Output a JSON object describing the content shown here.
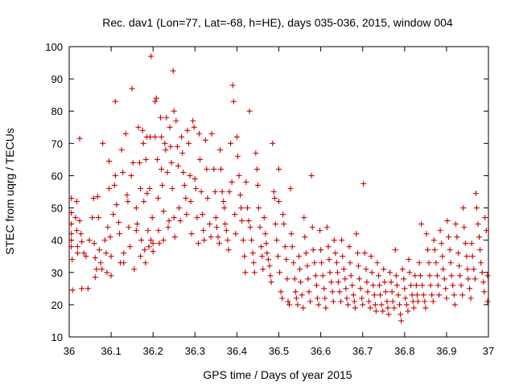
{
  "chart_data": {
    "type": "scatter",
    "title": "Rec. dav1 (Lon=77, Lat=-68, h=HE), days 035-036, 2015, window 004",
    "xlabel": "GPS time / Days of year 2015",
    "ylabel": "STEC from uqrg / TECUs",
    "xlim": [
      36,
      37
    ],
    "ylim": [
      10,
      100
    ],
    "xticks": [
      36,
      36.1,
      36.2,
      36.3,
      36.4,
      36.5,
      36.6,
      36.7,
      36.8,
      36.9,
      37
    ],
    "xtick_labels": [
      "36",
      "36.1",
      "36.2",
      "36.3",
      "36.4",
      "36.5",
      "36.6",
      "36.7",
      "36.8",
      "36.9",
      "37"
    ],
    "yticks": [
      10,
      20,
      30,
      40,
      50,
      60,
      70,
      80,
      90,
      100
    ],
    "ytick_labels": [
      "10",
      "20",
      "30",
      "40",
      "50",
      "60",
      "70",
      "80",
      "90",
      "100"
    ],
    "grid": false,
    "marker": "plus",
    "marker_color": "#cc0000",
    "points": [
      [
        36.005,
        53
      ],
      [
        36.005,
        48.5
      ],
      [
        36.005,
        45
      ],
      [
        36.005,
        42
      ],
      [
        36.005,
        40
      ],
      [
        36.005,
        38
      ],
      [
        36.007,
        34
      ],
      [
        36.008,
        24.5
      ],
      [
        36.015,
        47
      ],
      [
        36.018,
        52
      ],
      [
        36.018,
        43
      ],
      [
        36.02,
        38
      ],
      [
        36.02,
        36
      ],
      [
        36.025,
        71.5
      ],
      [
        36.025,
        46
      ],
      [
        36.028,
        42
      ],
      [
        36.03,
        39.5
      ],
      [
        36.03,
        25
      ],
      [
        36.035,
        36
      ],
      [
        36.04,
        35
      ],
      [
        36.045,
        25
      ],
      [
        36.048,
        40
      ],
      [
        36.055,
        47
      ],
      [
        36.058,
        53
      ],
      [
        36.06,
        39
      ],
      [
        36.062,
        34.5
      ],
      [
        36.062,
        28.5
      ],
      [
        36.065,
        31
      ],
      [
        36.068,
        53.5
      ],
      [
        36.07,
        47
      ],
      [
        36.072,
        37
      ],
      [
        36.075,
        33
      ],
      [
        36.078,
        31
      ],
      [
        36.08,
        70
      ],
      [
        36.085,
        40
      ],
      [
        36.088,
        36
      ],
      [
        36.09,
        30
      ],
      [
        36.092,
        44
      ],
      [
        36.095,
        64.5
      ],
      [
        36.095,
        56
      ],
      [
        36.098,
        41
      ],
      [
        36.1,
        35
      ],
      [
        36.1,
        29
      ],
      [
        36.105,
        48
      ],
      [
        36.108,
        57
      ],
      [
        36.11,
        83
      ],
      [
        36.11,
        60
      ],
      [
        36.113,
        51
      ],
      [
        36.118,
        45.5
      ],
      [
        36.12,
        42
      ],
      [
        36.122,
        33
      ],
      [
        36.125,
        68
      ],
      [
        36.128,
        61
      ],
      [
        36.13,
        36
      ],
      [
        36.13,
        33
      ],
      [
        36.135,
        73
      ],
      [
        36.138,
        54
      ],
      [
        36.14,
        52
      ],
      [
        36.142,
        44
      ],
      [
        36.145,
        38
      ],
      [
        36.148,
        60
      ],
      [
        36.15,
        87
      ],
      [
        36.152,
        64
      ],
      [
        36.155,
        31
      ],
      [
        36.16,
        50
      ],
      [
        36.16,
        43
      ],
      [
        36.162,
        45
      ],
      [
        36.165,
        75
      ],
      [
        36.168,
        64
      ],
      [
        36.17,
        56
      ],
      [
        36.17,
        35
      ],
      [
        36.172,
        40
      ],
      [
        36.175,
        74
      ],
      [
        36.177,
        70
      ],
      [
        36.178,
        52
      ],
      [
        36.18,
        37
      ],
      [
        36.182,
        33
      ],
      [
        36.183,
        65
      ],
      [
        36.185,
        72
      ],
      [
        36.186,
        54.5
      ],
      [
        36.188,
        43
      ],
      [
        36.19,
        38
      ],
      [
        36.192,
        56
      ],
      [
        36.193,
        72
      ],
      [
        36.195,
        97
      ],
      [
        36.195,
        40
      ],
      [
        36.198,
        47
      ],
      [
        36.2,
        39
      ],
      [
        36.2,
        36.5
      ],
      [
        36.205,
        83
      ],
      [
        36.205,
        72
      ],
      [
        36.208,
        84
      ],
      [
        36.21,
        65
      ],
      [
        36.212,
        53
      ],
      [
        36.213,
        43
      ],
      [
        36.215,
        39
      ],
      [
        36.218,
        78
      ],
      [
        36.22,
        72
      ],
      [
        36.22,
        62
      ],
      [
        36.222,
        57
      ],
      [
        36.225,
        49
      ],
      [
        36.225,
        40
      ],
      [
        36.228,
        70
      ],
      [
        36.23,
        68
      ],
      [
        36.232,
        78
      ],
      [
        36.234,
        61
      ],
      [
        36.236,
        44
      ],
      [
        36.238,
        46
      ],
      [
        36.24,
        75
      ],
      [
        36.242,
        69
      ],
      [
        36.244,
        64
      ],
      [
        36.246,
        56
      ],
      [
        36.248,
        92.5
      ],
      [
        36.25,
        80
      ],
      [
        36.25,
        47
      ],
      [
        36.252,
        41
      ],
      [
        36.255,
        77
      ],
      [
        36.258,
        69
      ],
      [
        36.26,
        63
      ],
      [
        36.262,
        50
      ],
      [
        36.265,
        46
      ],
      [
        36.268,
        72
      ],
      [
        36.27,
        67
      ],
      [
        36.272,
        61
      ],
      [
        36.275,
        57
      ],
      [
        36.278,
        53
      ],
      [
        36.28,
        48
      ],
      [
        36.282,
        74
      ],
      [
        36.285,
        70
      ],
      [
        36.288,
        60
      ],
      [
        36.29,
        52
      ],
      [
        36.292,
        42
      ],
      [
        36.295,
        77
      ],
      [
        36.298,
        75
      ],
      [
        36.3,
        59
      ],
      [
        36.302,
        56
      ],
      [
        36.305,
        47
      ],
      [
        36.308,
        39
      ],
      [
        36.31,
        73
      ],
      [
        36.312,
        65
      ],
      [
        36.315,
        55
      ],
      [
        36.318,
        48
      ],
      [
        36.32,
        43
      ],
      [
        36.322,
        40
      ],
      [
        36.325,
        71
      ],
      [
        36.328,
        62
      ],
      [
        36.33,
        53
      ],
      [
        36.335,
        45
      ],
      [
        36.338,
        41
      ],
      [
        36.34,
        73
      ],
      [
        36.345,
        62
      ],
      [
        36.348,
        55
      ],
      [
        36.35,
        47
      ],
      [
        36.352,
        44
      ],
      [
        36.355,
        41
      ],
      [
        36.358,
        39
      ],
      [
        36.36,
        68
      ],
      [
        36.362,
        62
      ],
      [
        36.365,
        55
      ],
      [
        36.368,
        52
      ],
      [
        36.37,
        50
      ],
      [
        36.372,
        45
      ],
      [
        36.375,
        43
      ],
      [
        36.378,
        40
      ],
      [
        36.38,
        37
      ],
      [
        36.382,
        55
      ],
      [
        36.385,
        70
      ],
      [
        36.388,
        58
      ],
      [
        36.39,
        88
      ],
      [
        36.392,
        83
      ],
      [
        36.395,
        48
      ],
      [
        36.397,
        42
      ],
      [
        36.4,
        72
      ],
      [
        36.402,
        66
      ],
      [
        36.405,
        60
      ],
      [
        36.408,
        54
      ],
      [
        36.41,
        50
      ],
      [
        36.412,
        46
      ],
      [
        36.415,
        40
      ],
      [
        36.418,
        35
      ],
      [
        36.42,
        30
      ],
      [
        36.422,
        58
      ],
      [
        36.425,
        50
      ],
      [
        36.428,
        46
      ],
      [
        36.43,
        80
      ],
      [
        36.432,
        44
      ],
      [
        36.435,
        40
      ],
      [
        36.438,
        36
      ],
      [
        36.44,
        33
      ],
      [
        36.442,
        30
      ],
      [
        36.445,
        67
      ],
      [
        36.448,
        62
      ],
      [
        36.45,
        57
      ],
      [
        36.452,
        50
      ],
      [
        36.455,
        44
      ],
      [
        36.458,
        38
      ],
      [
        36.46,
        35
      ],
      [
        36.462,
        31
      ],
      [
        36.465,
        47
      ],
      [
        36.468,
        42
      ],
      [
        36.47,
        39
      ],
      [
        36.472,
        36
      ],
      [
        36.475,
        34
      ],
      [
        36.478,
        32
      ],
      [
        36.48,
        29
      ],
      [
        36.482,
        27
      ],
      [
        36.485,
        70
      ],
      [
        36.488,
        55
      ],
      [
        36.49,
        53
      ],
      [
        36.492,
        45
      ],
      [
        36.495,
        40
      ],
      [
        36.498,
        35
      ],
      [
        36.5,
        62
      ],
      [
        36.5,
        52
      ],
      [
        36.502,
        30
      ],
      [
        36.505,
        24
      ],
      [
        36.508,
        22
      ],
      [
        36.51,
        48
      ],
      [
        36.512,
        45
      ],
      [
        36.515,
        38
      ],
      [
        36.518,
        34
      ],
      [
        36.52,
        28
      ],
      [
        36.522,
        21
      ],
      [
        36.525,
        20
      ],
      [
        36.528,
        56
      ],
      [
        36.53,
        42
      ],
      [
        36.532,
        38
      ],
      [
        36.535,
        33
      ],
      [
        36.538,
        28
      ],
      [
        36.54,
        24
      ],
      [
        36.542,
        22
      ],
      [
        36.545,
        20
      ],
      [
        36.548,
        35
      ],
      [
        36.55,
        31
      ],
      [
        36.552,
        27
      ],
      [
        36.555,
        23
      ],
      [
        36.558,
        19
      ],
      [
        36.56,
        47
      ],
      [
        36.562,
        41
      ],
      [
        36.565,
        36
      ],
      [
        36.568,
        32
      ],
      [
        36.57,
        28
      ],
      [
        36.572,
        24
      ],
      [
        36.575,
        21
      ],
      [
        36.578,
        60
      ],
      [
        36.58,
        44
      ],
      [
        36.582,
        37
      ],
      [
        36.585,
        33
      ],
      [
        36.588,
        29
      ],
      [
        36.59,
        26
      ],
      [
        36.592,
        22
      ],
      [
        36.595,
        20
      ],
      [
        36.598,
        43
      ],
      [
        36.6,
        37
      ],
      [
        36.602,
        33
      ],
      [
        36.605,
        29
      ],
      [
        36.608,
        25
      ],
      [
        36.61,
        22
      ],
      [
        36.612,
        19
      ],
      [
        36.615,
        44
      ],
      [
        36.618,
        38
      ],
      [
        36.62,
        34
      ],
      [
        36.622,
        30
      ],
      [
        36.625,
        27
      ],
      [
        36.628,
        24
      ],
      [
        36.63,
        21
      ],
      [
        36.632,
        40
      ],
      [
        36.635,
        36
      ],
      [
        36.638,
        33
      ],
      [
        36.64,
        30
      ],
      [
        36.642,
        27
      ],
      [
        36.645,
        24
      ],
      [
        36.648,
        21
      ],
      [
        36.65,
        40
      ],
      [
        36.652,
        35
      ],
      [
        36.655,
        31
      ],
      [
        36.658,
        28
      ],
      [
        36.66,
        25
      ],
      [
        36.662,
        22
      ],
      [
        36.665,
        20
      ],
      [
        36.668,
        38
      ],
      [
        36.67,
        33
      ],
      [
        36.672,
        29
      ],
      [
        36.675,
        26
      ],
      [
        36.678,
        23
      ],
      [
        36.68,
        21
      ],
      [
        36.682,
        19
      ],
      [
        36.685,
        42
      ],
      [
        36.688,
        36
      ],
      [
        36.69,
        32
      ],
      [
        36.692,
        28
      ],
      [
        36.695,
        25
      ],
      [
        36.698,
        22
      ],
      [
        36.7,
        20
      ],
      [
        36.702,
        57.5
      ],
      [
        36.705,
        36
      ],
      [
        36.708,
        31
      ],
      [
        36.71,
        27
      ],
      [
        36.712,
        24
      ],
      [
        36.715,
        21
      ],
      [
        36.718,
        19
      ],
      [
        36.72,
        35
      ],
      [
        36.722,
        30
      ],
      [
        36.725,
        26
      ],
      [
        36.728,
        23
      ],
      [
        36.73,
        20
      ],
      [
        36.732,
        18
      ],
      [
        36.735,
        33
      ],
      [
        36.738,
        29
      ],
      [
        36.74,
        26
      ],
      [
        36.742,
        23
      ],
      [
        36.745,
        20
      ],
      [
        36.748,
        18
      ],
      [
        36.75,
        31
      ],
      [
        36.752,
        27
      ],
      [
        36.755,
        24
      ],
      [
        36.758,
        21
      ],
      [
        36.76,
        19
      ],
      [
        36.762,
        17
      ],
      [
        36.765,
        30
      ],
      [
        36.768,
        27
      ],
      [
        36.77,
        24
      ],
      [
        36.772,
        21
      ],
      [
        36.775,
        19
      ],
      [
        36.778,
        37
      ],
      [
        36.78,
        29
      ],
      [
        36.782,
        26
      ],
      [
        36.785,
        23
      ],
      [
        36.788,
        20
      ],
      [
        36.79,
        17
      ],
      [
        36.792,
        15
      ],
      [
        36.795,
        31
      ],
      [
        36.798,
        28
      ],
      [
        36.8,
        25
      ],
      [
        36.802,
        22
      ],
      [
        36.805,
        20
      ],
      [
        36.808,
        18
      ],
      [
        36.81,
        34
      ],
      [
        36.812,
        30
      ],
      [
        36.815,
        26
      ],
      [
        36.818,
        23
      ],
      [
        36.82,
        21
      ],
      [
        36.822,
        19
      ],
      [
        36.825,
        29
      ],
      [
        36.828,
        26
      ],
      [
        36.83,
        23
      ],
      [
        36.832,
        21
      ],
      [
        36.835,
        33
      ],
      [
        36.838,
        29
      ],
      [
        36.84,
        45
      ],
      [
        36.842,
        26
      ],
      [
        36.845,
        23
      ],
      [
        36.848,
        21
      ],
      [
        36.85,
        19
      ],
      [
        36.852,
        42
      ],
      [
        36.855,
        37
      ],
      [
        36.858,
        33
      ],
      [
        36.86,
        29
      ],
      [
        36.862,
        26
      ],
      [
        36.865,
        23
      ],
      [
        36.868,
        21
      ],
      [
        36.87,
        40
      ],
      [
        36.872,
        37
      ],
      [
        36.875,
        33
      ],
      [
        36.878,
        29
      ],
      [
        36.88,
        26
      ],
      [
        36.882,
        23
      ],
      [
        36.885,
        43
      ],
      [
        36.888,
        39
      ],
      [
        36.89,
        35
      ],
      [
        36.892,
        31
      ],
      [
        36.895,
        28
      ],
      [
        36.898,
        25
      ],
      [
        36.9,
        22
      ],
      [
        36.902,
        46
      ],
      [
        36.905,
        41
      ],
      [
        36.908,
        37
      ],
      [
        36.91,
        33
      ],
      [
        36.912,
        29
      ],
      [
        36.915,
        26
      ],
      [
        36.918,
        23
      ],
      [
        36.92,
        20
      ],
      [
        36.922,
        45
      ],
      [
        36.925,
        41
      ],
      [
        36.928,
        36
      ],
      [
        36.93,
        32
      ],
      [
        36.932,
        29
      ],
      [
        36.935,
        26
      ],
      [
        36.938,
        23
      ],
      [
        36.94,
        50
      ],
      [
        36.942,
        44
      ],
      [
        36.945,
        39
      ],
      [
        36.948,
        35
      ],
      [
        36.95,
        31
      ],
      [
        36.952,
        28
      ],
      [
        36.955,
        25
      ],
      [
        36.958,
        22
      ],
      [
        36.96,
        39
      ],
      [
        36.962,
        35
      ],
      [
        36.965,
        31
      ],
      [
        36.968,
        28
      ],
      [
        36.97,
        54.5
      ],
      [
        36.972,
        50
      ],
      [
        36.975,
        45
      ],
      [
        36.978,
        41
      ],
      [
        36.98,
        37
      ],
      [
        36.982,
        33
      ],
      [
        36.985,
        30
      ],
      [
        36.988,
        27
      ],
      [
        36.99,
        24
      ],
      [
        36.992,
        47
      ],
      [
        36.995,
        43
      ],
      [
        36.998,
        29
      ],
      [
        36.998,
        21
      ]
    ]
  }
}
